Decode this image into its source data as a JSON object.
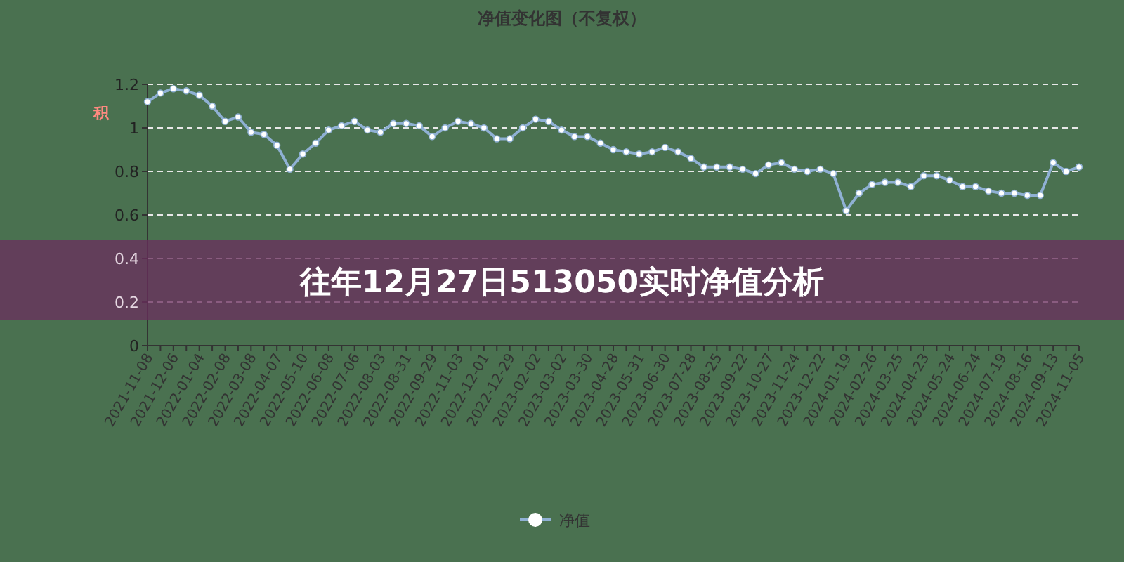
{
  "chart_data": {
    "type": "line",
    "title": "净值变化图（不复权）",
    "ylabel": "积",
    "annotations": [
      "往年12月27日513050实时净值分析"
    ],
    "categories": [
      "2021-11-08",
      null,
      "2021-12-06",
      null,
      "2022-01-04",
      null,
      "2022-02-08",
      null,
      "2022-03-08",
      null,
      "2022-04-07",
      null,
      "2022-05-10",
      null,
      "2022-06-08",
      null,
      "2022-07-06",
      null,
      "2022-08-03",
      null,
      "2022-08-31",
      null,
      "2022-09-29",
      null,
      "2022-11-03",
      null,
      "2022-12-01",
      null,
      "2022-12-29",
      null,
      "2023-02-02",
      null,
      "2023-03-02",
      null,
      "2023-03-30",
      null,
      "2023-04-28",
      null,
      "2023-05-31",
      null,
      "2023-06-30",
      null,
      "2023-07-28",
      null,
      "2023-08-25",
      null,
      "2023-09-22",
      null,
      "2023-10-27",
      null,
      "2023-11-24",
      null,
      "2023-12-22",
      null,
      "2024-01-19",
      null,
      "2024-02-26",
      null,
      "2024-03-25",
      null,
      "2024-04-23",
      null,
      "2024-05-24",
      null,
      "2024-06-24",
      null,
      "2024-07-19",
      null,
      "2024-08-16",
      null,
      "2024-09-13",
      null,
      "2024-11-05"
    ],
    "series": [
      {
        "name": "净值",
        "color": "#8fb0d3",
        "values": [
          1.12,
          1.16,
          1.18,
          1.17,
          1.15,
          1.1,
          1.03,
          1.05,
          0.98,
          0.97,
          0.92,
          0.81,
          0.88,
          0.93,
          0.99,
          1.01,
          1.03,
          0.99,
          0.98,
          1.02,
          1.02,
          1.01,
          0.96,
          1.0,
          1.03,
          1.02,
          1.0,
          0.95,
          0.95,
          1.0,
          1.04,
          1.03,
          0.99,
          0.96,
          0.96,
          0.93,
          0.9,
          0.89,
          0.88,
          0.89,
          0.91,
          0.89,
          0.86,
          0.82,
          0.82,
          0.82,
          0.81,
          0.79,
          0.83,
          0.84,
          0.81,
          0.8,
          0.81,
          0.79,
          0.62,
          0.7,
          0.74,
          0.75,
          0.75,
          0.73,
          0.78,
          0.78,
          0.76,
          0.73,
          0.73,
          0.71,
          0.7,
          0.7,
          0.69,
          0.69,
          0.84,
          0.8,
          0.82
        ]
      }
    ],
    "ylim": [
      0,
      1.2
    ],
    "yticks": [
      0,
      0.2,
      0.4,
      0.6,
      0.8,
      1,
      1.2
    ],
    "grid": "y",
    "legend": "bottom",
    "marker": "circle",
    "line_style": "solid"
  }
}
